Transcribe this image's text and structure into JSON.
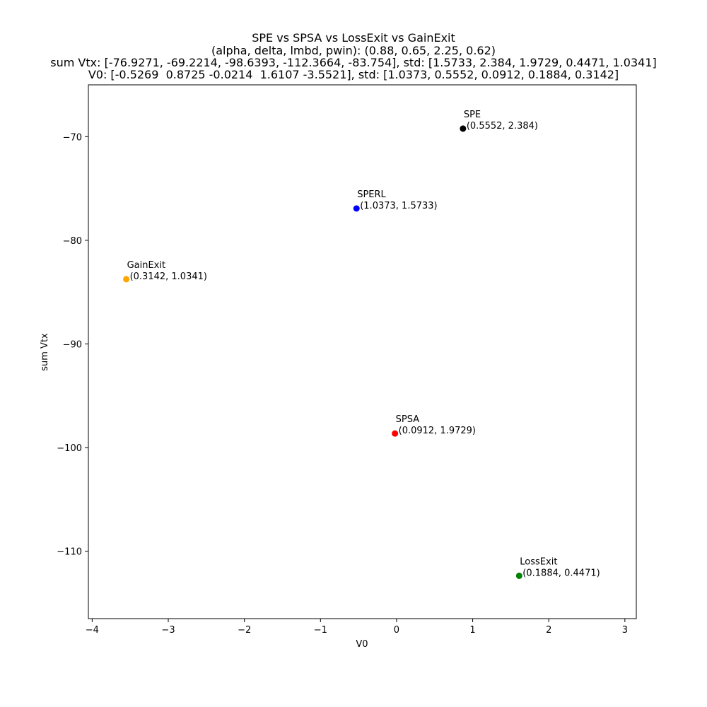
{
  "chart_data": {
    "type": "scatter",
    "title_lines": [
      "SPE vs SPSA vs LossExit vs GainExit",
      "(alpha, delta, lmbd, pwin): (0.88, 0.65, 2.25, 0.62)",
      "sum Vtx: [-76.9271, -69.2214, -98.6393, -112.3664, -83.754], std: [1.5733, 2.384, 1.9729, 0.4471, 1.0341]",
      "V0: [-0.5269  0.8725 -0.0214  1.6107 -3.5521], std: [1.0373, 0.5552, 0.0912, 0.1884, 0.3142]"
    ],
    "xlabel": "V0",
    "ylabel": "sum Vtx",
    "xlim": [
      -4.05,
      3.15
    ],
    "ylim": [
      -116.5,
      -65.0
    ],
    "xticks": [
      -4,
      -3,
      -2,
      -1,
      0,
      1,
      2,
      3
    ],
    "xtick_labels": [
      "−4",
      "−3",
      "−2",
      "−1",
      "0",
      "1",
      "2",
      "3"
    ],
    "yticks": [
      -110,
      -100,
      -90,
      -80,
      -70
    ],
    "ytick_labels": [
      "−110",
      "−100",
      "−90",
      "−80",
      "−70"
    ],
    "grid": false,
    "points": [
      {
        "name": "SPERL",
        "x": -0.5269,
        "y": -76.9271,
        "label": "(1.0373, 1.5733)",
        "color": "#0000ff"
      },
      {
        "name": "SPE",
        "x": 0.8725,
        "y": -69.2214,
        "label": "(0.5552, 2.384)",
        "color": "#000000"
      },
      {
        "name": "SPSA",
        "x": -0.0214,
        "y": -98.6393,
        "label": "(0.0912, 1.9729)",
        "color": "#ff0000"
      },
      {
        "name": "LossExit",
        "x": 1.6107,
        "y": -112.3664,
        "label": "(0.1884, 0.4471)",
        "color": "#008000"
      },
      {
        "name": "GainExit",
        "x": -3.5521,
        "y": -83.754,
        "label": "(0.3142, 1.0341)",
        "color": "#ffa500"
      }
    ]
  }
}
